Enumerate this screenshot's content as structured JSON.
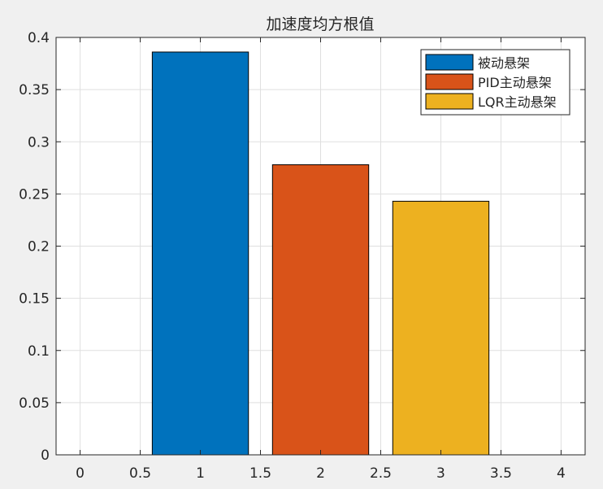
{
  "chart_data": {
    "type": "bar",
    "title": "加速度均方根值",
    "xlabel": "",
    "ylabel": "",
    "xlim": [
      -0.2,
      4.2
    ],
    "ylim": [
      0,
      0.4
    ],
    "x_ticks": [
      "0",
      "0.5",
      "1",
      "1.5",
      "2",
      "2.5",
      "3",
      "3.5",
      "4"
    ],
    "y_ticks": [
      "0",
      "0.05",
      "0.1",
      "0.15",
      "0.2",
      "0.25",
      "0.3",
      "0.35",
      "0.4"
    ],
    "grid": true,
    "legend_position": "top-right",
    "series": [
      {
        "name": "被动悬架",
        "x": 1,
        "value": 0.386,
        "color": "#0072bd"
      },
      {
        "name": "PID主动悬架",
        "x": 2,
        "value": 0.278,
        "color": "#d95319"
      },
      {
        "name": "LQR主动悬架",
        "x": 3,
        "value": 0.243,
        "color": "#edb120"
      }
    ]
  }
}
